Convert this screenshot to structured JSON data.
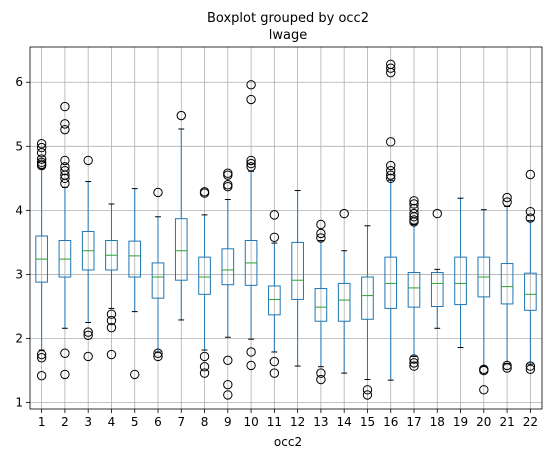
{
  "chart_data": {
    "type": "boxplot",
    "title": "Boxplot grouped by occ2",
    "subtitle": "lwage",
    "xlabel": "occ2",
    "ylabel": "",
    "ylim": [
      0.9,
      6.55
    ],
    "yticks": [
      1,
      2,
      3,
      4,
      5,
      6
    ],
    "grid": true,
    "colors": {
      "box": "#1f77b4",
      "median": "#2ca02c",
      "grid": "#b0b0b0",
      "flier": "#000000"
    },
    "categories": [
      "1",
      "2",
      "3",
      "4",
      "5",
      "6",
      "7",
      "8",
      "9",
      "10",
      "11",
      "12",
      "13",
      "14",
      "15",
      "16",
      "17",
      "18",
      "19",
      "20",
      "21",
      "22"
    ],
    "boxes": [
      {
        "category": "1",
        "whisker_low": 1.82,
        "q1": 2.88,
        "median": 3.24,
        "q3": 3.6,
        "whisker_high": 4.65,
        "fliers": [
          1.42,
          1.7,
          1.75,
          4.7,
          4.72,
          4.75,
          4.8,
          4.9,
          4.98,
          5.04
        ]
      },
      {
        "category": "2",
        "whisker_low": 2.16,
        "q1": 2.96,
        "median": 3.24,
        "q3": 3.53,
        "whisker_high": 4.36,
        "fliers": [
          1.44,
          1.77,
          4.42,
          4.5,
          4.55,
          4.62,
          4.68,
          4.78,
          5.26,
          5.35,
          5.62
        ]
      },
      {
        "category": "3",
        "whisker_low": 2.25,
        "q1": 3.07,
        "median": 3.37,
        "q3": 3.67,
        "whisker_high": 4.45,
        "fliers": [
          1.72,
          2.05,
          2.1,
          4.78
        ]
      },
      {
        "category": "4",
        "whisker_low": 2.47,
        "q1": 3.07,
        "median": 3.3,
        "q3": 3.53,
        "whisker_high": 4.1,
        "fliers": [
          1.75,
          2.17,
          2.28,
          2.38
        ]
      },
      {
        "category": "5",
        "whisker_low": 2.42,
        "q1": 2.96,
        "median": 3.29,
        "q3": 3.52,
        "whisker_high": 4.34,
        "fliers": [
          1.44
        ]
      },
      {
        "category": "6",
        "whisker_low": 1.79,
        "q1": 2.63,
        "median": 2.96,
        "q3": 3.18,
        "whisker_high": 3.9,
        "fliers": [
          1.72,
          1.77,
          4.28
        ]
      },
      {
        "category": "7",
        "whisker_low": 2.29,
        "q1": 2.91,
        "median": 3.37,
        "q3": 3.87,
        "whisker_high": 5.27,
        "fliers": [
          5.48
        ]
      },
      {
        "category": "8",
        "whisker_low": 1.82,
        "q1": 2.69,
        "median": 2.96,
        "q3": 3.27,
        "whisker_high": 3.93,
        "fliers": [
          1.46,
          1.56,
          1.72,
          4.27,
          4.29
        ]
      },
      {
        "category": "9",
        "whisker_low": 2.02,
        "q1": 2.84,
        "median": 3.07,
        "q3": 3.4,
        "whisker_high": 4.17,
        "fliers": [
          1.12,
          1.28,
          1.66,
          4.37,
          4.4,
          4.55,
          4.58
        ]
      },
      {
        "category": "10",
        "whisker_low": 1.99,
        "q1": 2.83,
        "median": 3.18,
        "q3": 3.53,
        "whisker_high": 4.61,
        "fliers": [
          1.58,
          1.79,
          4.68,
          4.73,
          4.78,
          5.73,
          5.96
        ]
      },
      {
        "category": "11",
        "whisker_low": 1.79,
        "q1": 2.37,
        "median": 2.61,
        "q3": 2.82,
        "whisker_high": 3.49,
        "fliers": [
          1.46,
          1.64,
          3.58,
          3.93
        ]
      },
      {
        "category": "12",
        "whisker_low": 1.57,
        "q1": 2.61,
        "median": 2.91,
        "q3": 3.5,
        "whisker_high": 4.31,
        "fliers": []
      },
      {
        "category": "13",
        "whisker_low": 1.56,
        "q1": 2.27,
        "median": 2.49,
        "q3": 2.78,
        "whisker_high": 3.53,
        "fliers": [
          1.36,
          1.46,
          3.57,
          3.64,
          3.78
        ]
      },
      {
        "category": "14",
        "whisker_low": 1.46,
        "q1": 2.27,
        "median": 2.6,
        "q3": 2.86,
        "whisker_high": 3.37,
        "fliers": [
          3.95
        ]
      },
      {
        "category": "15",
        "whisker_low": 1.36,
        "q1": 2.3,
        "median": 2.67,
        "q3": 2.96,
        "whisker_high": 3.76,
        "fliers": [
          1.12,
          1.2
        ]
      },
      {
        "category": "16",
        "whisker_low": 1.35,
        "q1": 2.47,
        "median": 2.86,
        "q3": 3.27,
        "whisker_high": 4.47,
        "fliers": [
          4.5,
          4.55,
          4.62,
          4.7,
          5.07,
          6.15,
          6.22,
          6.28
        ]
      },
      {
        "category": "17",
        "whisker_low": 1.72,
        "q1": 2.49,
        "median": 2.79,
        "q3": 3.03,
        "whisker_high": 3.78,
        "fliers": [
          1.57,
          1.62,
          1.68,
          3.82,
          3.85,
          3.9,
          3.95,
          4.03,
          4.1,
          4.15
        ]
      },
      {
        "category": "18",
        "whisker_low": 2.16,
        "q1": 2.5,
        "median": 2.86,
        "q3": 3.03,
        "whisker_high": 3.08,
        "fliers": [
          3.95
        ]
      },
      {
        "category": "19",
        "whisker_low": 1.86,
        "q1": 2.53,
        "median": 2.86,
        "q3": 3.27,
        "whisker_high": 4.19,
        "fliers": []
      },
      {
        "category": "20",
        "whisker_low": 1.57,
        "q1": 2.65,
        "median": 2.96,
        "q3": 3.27,
        "whisker_high": 4.01,
        "fliers": [
          1.2,
          1.5,
          1.52
        ]
      },
      {
        "category": "21",
        "whisker_low": 1.61,
        "q1": 2.54,
        "median": 2.81,
        "q3": 3.17,
        "whisker_high": 4.06,
        "fliers": [
          1.54,
          1.58,
          4.13,
          4.2
        ]
      },
      {
        "category": "22",
        "whisker_low": 1.6,
        "q1": 2.44,
        "median": 2.69,
        "q3": 3.02,
        "whisker_high": 3.84,
        "fliers": [
          1.52,
          1.57,
          3.88,
          3.98,
          4.56
        ]
      }
    ]
  }
}
